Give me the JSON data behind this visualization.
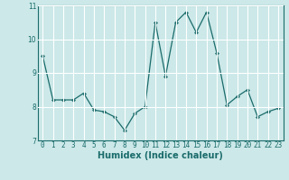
{
  "x": [
    0,
    1,
    2,
    3,
    4,
    5,
    6,
    7,
    8,
    9,
    10,
    11,
    12,
    13,
    14,
    15,
    16,
    17,
    18,
    19,
    20,
    21,
    22,
    23
  ],
  "y": [
    9.5,
    8.2,
    8.2,
    8.2,
    8.4,
    7.9,
    7.85,
    7.7,
    7.3,
    7.8,
    8.0,
    10.5,
    8.9,
    10.5,
    10.8,
    10.2,
    10.8,
    9.6,
    8.05,
    8.3,
    8.5,
    7.7,
    7.85,
    7.95
  ],
  "line_color": "#1a6b6b",
  "marker": "D",
  "marker_size": 2.0,
  "bg_color": "#cce8e8",
  "grid_color": "#ffffff",
  "xlabel": "Humidex (Indice chaleur)",
  "ylim": [
    7,
    11
  ],
  "xlim_min": -0.5,
  "xlim_max": 23.5,
  "yticks": [
    7,
    8,
    9,
    10,
    11
  ],
  "xticks": [
    0,
    1,
    2,
    3,
    4,
    5,
    6,
    7,
    8,
    9,
    10,
    11,
    12,
    13,
    14,
    15,
    16,
    17,
    18,
    19,
    20,
    21,
    22,
    23
  ],
  "tick_label_size": 5.5,
  "xlabel_size": 7.0,
  "linewidth": 0.9
}
